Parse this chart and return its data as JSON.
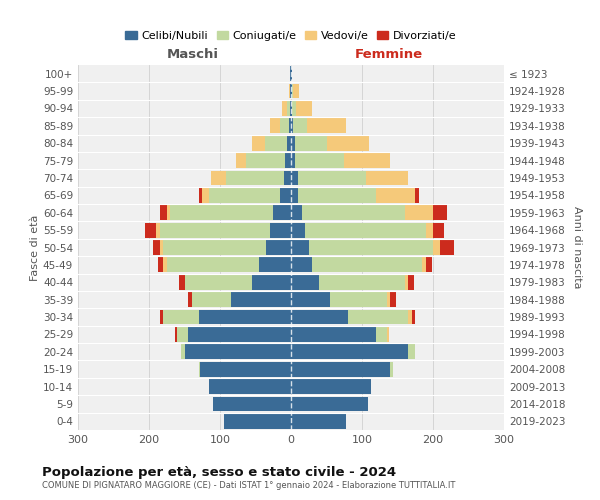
{
  "age_groups": [
    "100+",
    "95-99",
    "90-94",
    "85-89",
    "80-84",
    "75-79",
    "70-74",
    "65-69",
    "60-64",
    "55-59",
    "50-54",
    "45-49",
    "40-44",
    "35-39",
    "30-34",
    "25-29",
    "20-24",
    "15-19",
    "10-14",
    "5-9",
    "0-4"
  ],
  "birth_years": [
    "≤ 1923",
    "1924-1928",
    "1929-1933",
    "1934-1938",
    "1939-1943",
    "1944-1948",
    "1949-1953",
    "1954-1958",
    "1959-1963",
    "1964-1968",
    "1969-1973",
    "1974-1978",
    "1979-1983",
    "1984-1988",
    "1989-1993",
    "1994-1998",
    "1999-2003",
    "2004-2008",
    "2009-2013",
    "2014-2018",
    "2019-2023"
  ],
  "maschi": {
    "celibi": [
      1,
      1,
      2,
      3,
      5,
      8,
      10,
      15,
      25,
      30,
      35,
      45,
      55,
      85,
      130,
      145,
      150,
      128,
      115,
      110,
      95
    ],
    "coniugati": [
      0,
      0,
      3,
      12,
      32,
      55,
      82,
      100,
      145,
      155,
      145,
      130,
      95,
      55,
      50,
      15,
      5,
      2,
      0,
      0,
      0
    ],
    "vedovi": [
      0,
      2,
      8,
      15,
      18,
      15,
      20,
      10,
      5,
      5,
      5,
      5,
      0,
      0,
      0,
      0,
      0,
      0,
      0,
      0,
      0
    ],
    "divorziati": [
      0,
      0,
      0,
      0,
      0,
      0,
      0,
      5,
      10,
      15,
      10,
      8,
      8,
      5,
      5,
      3,
      0,
      0,
      0,
      0,
      0
    ]
  },
  "femmine": {
    "nubili": [
      1,
      1,
      2,
      3,
      5,
      5,
      10,
      10,
      15,
      20,
      25,
      30,
      40,
      55,
      80,
      120,
      165,
      140,
      112,
      108,
      78
    ],
    "coniugate": [
      0,
      2,
      5,
      20,
      45,
      70,
      95,
      110,
      145,
      170,
      175,
      155,
      120,
      80,
      85,
      15,
      10,
      3,
      0,
      0,
      0
    ],
    "vedove": [
      0,
      8,
      22,
      55,
      60,
      65,
      60,
      55,
      40,
      10,
      10,
      5,
      5,
      5,
      5,
      3,
      0,
      0,
      0,
      0,
      0
    ],
    "divorziate": [
      0,
      0,
      0,
      0,
      0,
      0,
      0,
      5,
      20,
      15,
      20,
      8,
      8,
      8,
      5,
      0,
      0,
      0,
      0,
      0,
      0
    ]
  },
  "colors": {
    "celibi": "#3a6b96",
    "coniugati": "#c2d9a0",
    "vedovi": "#f5c97a",
    "divorziati": "#cc2b1d"
  },
  "xlim": 300,
  "title": "Popolazione per età, sesso e stato civile - 2024",
  "subtitle": "COMUNE DI PIGNATARO MAGGIORE (CE) - Dati ISTAT 1° gennaio 2024 - Elaborazione TUTTITALIA.IT",
  "xlabel_left": "Maschi",
  "xlabel_right": "Femmine",
  "ylabel_left": "Fasce di età",
  "ylabel_right": "Anni di nascita",
  "legend_labels": [
    "Celibi/Nubili",
    "Coniugati/e",
    "Vedovi/e",
    "Divorziati/e"
  ],
  "background_color": "#ffffff",
  "plot_bg": "#f0f0f0"
}
